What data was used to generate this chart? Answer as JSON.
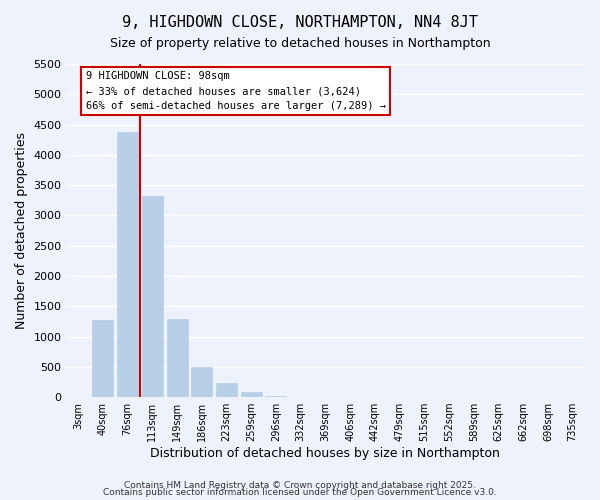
{
  "title": "9, HIGHDOWN CLOSE, NORTHAMPTON, NN4 8JT",
  "subtitle": "Size of property relative to detached houses in Northampton",
  "xlabel": "Distribution of detached houses by size in Northampton",
  "ylabel": "Number of detached properties",
  "bar_categories": [
    "3sqm",
    "40sqm",
    "76sqm",
    "113sqm",
    "149sqm",
    "186sqm",
    "223sqm",
    "259sqm",
    "296sqm",
    "332sqm",
    "369sqm",
    "406sqm",
    "442sqm",
    "479sqm",
    "515sqm",
    "552sqm",
    "589sqm",
    "625sqm",
    "662sqm",
    "698sqm",
    "735sqm"
  ],
  "bar_values": [
    0,
    1270,
    4380,
    3320,
    1290,
    500,
    230,
    80,
    20,
    5,
    2,
    1,
    0,
    0,
    0,
    0,
    0,
    0,
    0,
    0,
    0
  ],
  "bar_color": "#b8cfe8",
  "bar_edge_color": "#b8cfe8",
  "vline_x_index": 2,
  "vline_color": "#cc0000",
  "ylim": [
    0,
    5500
  ],
  "yticks": [
    0,
    500,
    1000,
    1500,
    2000,
    2500,
    3000,
    3500,
    4000,
    4500,
    5000,
    5500
  ],
  "annotation_title": "9 HIGHDOWN CLOSE: 98sqm",
  "annotation_line1": "← 33% of detached houses are smaller (3,624)",
  "annotation_line2": "66% of semi-detached houses are larger (7,289) →",
  "annotation_box_color": "#ffffff",
  "annotation_box_edge": "#cc0000",
  "background_color": "#eef2fb",
  "grid_color": "#ffffff",
  "footer1": "Contains HM Land Registry data © Crown copyright and database right 2025.",
  "footer2": "Contains public sector information licensed under the Open Government Licence v3.0.",
  "title_fontsize": 11,
  "subtitle_fontsize": 9,
  "axis_label_fontsize": 9
}
